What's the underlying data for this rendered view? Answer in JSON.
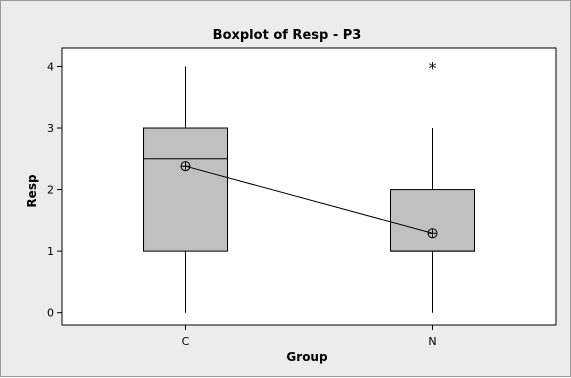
{
  "chart_data": {
    "type": "boxplot",
    "title": "Boxplot of Resp - P3",
    "xlabel": "Group",
    "ylabel": "Resp",
    "categories": [
      "C",
      "N"
    ],
    "ylim": [
      -0.2,
      4.3
    ],
    "yticks": [
      "0",
      "1",
      "2",
      "3",
      "4"
    ],
    "boxes": [
      {
        "category": "C",
        "min": 0,
        "q1": 1,
        "median": 2.5,
        "q3": 3,
        "max": 4,
        "mean": 2.38,
        "outliers": []
      },
      {
        "category": "N",
        "min": 0,
        "q1": 1,
        "median": 1,
        "q3": 2,
        "max": 3,
        "mean": 1.29,
        "outliers": [
          4
        ]
      }
    ],
    "mean_connect_line": true,
    "colors": {
      "background": "#ececec",
      "plot_area": "#ffffff",
      "box_fill": "#c0c0c0",
      "line": "#000000"
    },
    "grid": false,
    "legend": "none"
  }
}
